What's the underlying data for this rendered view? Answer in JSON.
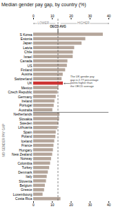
{
  "chart_data": {
    "type": "bar",
    "orientation": "horizontal",
    "title": "Median gender pay gap, by country (%)",
    "categories": [
      "S Korea",
      "Estonia",
      "Japan",
      "Latvia",
      "Chile",
      "Israel",
      "Canada",
      "US",
      "Finland",
      "Austria",
      "Switzerland",
      "UK",
      "Mexico",
      "Czech Republic",
      "Germany",
      "Ireland",
      "Portugal",
      "Australia",
      "Netherlands",
      "Slovakia",
      "Sweden",
      "Lithuania",
      "Spain",
      "Poland",
      "Iceland",
      "France",
      "Hungary",
      "New Zealand",
      "Norway",
      "Colombia",
      "Turkey",
      "Denmark",
      "Italy",
      "Slovenia",
      "Belgium",
      "Greece",
      "Luxembourg",
      "Costa Rica"
    ],
    "values": [
      37.0,
      27.7,
      25.7,
      21.8,
      21.1,
      21.0,
      18.2,
      17.9,
      17.0,
      15.7,
      15.1,
      15.77,
      13.4,
      12.8,
      12.0,
      11.3,
      10.9,
      10.2,
      14.0,
      13.8,
      13.4,
      12.8,
      12.0,
      11.8,
      11.2,
      10.8,
      10.5,
      10.1,
      9.5,
      9.0,
      8.5,
      7.8,
      7.2,
      6.8,
      6.2,
      5.8,
      5.0,
      14.5
    ],
    "colors": [
      "#b5a69b",
      "#b5a69b",
      "#b5a69b",
      "#b5a69b",
      "#b5a69b",
      "#b5a69b",
      "#b5a69b",
      "#b5a69b",
      "#b5a69b",
      "#b5a69b",
      "#b5a69b",
      "#cc3333",
      "#b5a69b",
      "#b5a69b",
      "#b5a69b",
      "#b5a69b",
      "#b5a69b",
      "#b5a69b",
      "#b5a69b",
      "#b5a69b",
      "#b5a69b",
      "#b5a69b",
      "#b5a69b",
      "#b5a69b",
      "#b5a69b",
      "#b5a69b",
      "#b5a69b",
      "#b5a69b",
      "#b5a69b",
      "#b5a69b",
      "#b5a69b",
      "#b5a69b",
      "#b5a69b",
      "#b5a69b",
      "#b5a69b",
      "#b5a69b",
      "#b5a69b",
      "#b5a69b"
    ],
    "xlim": [
      0,
      40
    ],
    "xticks": [
      0,
      10,
      20,
      30,
      40
    ],
    "group_sizes": [
      18,
      20
    ],
    "group_label": "NO GENDER PAY GAP",
    "reference_line": {
      "value": 13.0,
      "label": "OECD AVG"
    },
    "direction_labels": [
      "LOWER",
      "HIGHER"
    ],
    "annotation": {
      "text": "The UK gender pay\ngap is 2.77 percentage\npoints higher than\nthe OECD average",
      "category": "UK"
    }
  }
}
